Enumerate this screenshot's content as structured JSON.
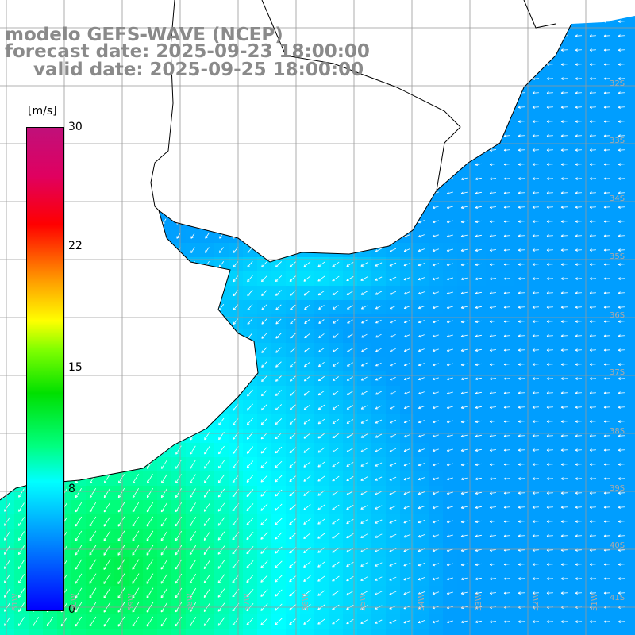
{
  "title": {
    "line1": "modelo GEFS-WAVE (NCEP)",
    "line2": "forecast date: 2025-09-23 18:00:00",
    "line3": "valid date: 2025-09-25 18:00:00"
  },
  "colorbar": {
    "unit": "[m/s]",
    "min": 0,
    "max": 30,
    "ticks": [
      "30",
      "22",
      "15",
      "8",
      "0"
    ],
    "colors": [
      "#0000ff",
      "#0090ff",
      "#00ffff",
      "#00ff80",
      "#00e000",
      "#80ff00",
      "#ffff00",
      "#ffa000",
      "#ff0000",
      "#c0107a"
    ]
  },
  "map": {
    "region": "South Atlantic off Uruguay / Rio de la Plata",
    "land_color": "#ffffff",
    "grid_color": "#999999",
    "lon_labels": [
      "61W",
      "60W",
      "59W",
      "58W",
      "57W",
      "56W",
      "55W",
      "54W",
      "53W",
      "52W",
      "51W"
    ],
    "lat_labels": [
      "32S",
      "33S",
      "34S",
      "35S",
      "36S",
      "37S",
      "38S",
      "39S",
      "40S",
      "41S"
    ],
    "wind_field": "strong SW-directed winds near coast (~10-12 m/s), weaker E winds offshore (~3-6 m/s)"
  }
}
